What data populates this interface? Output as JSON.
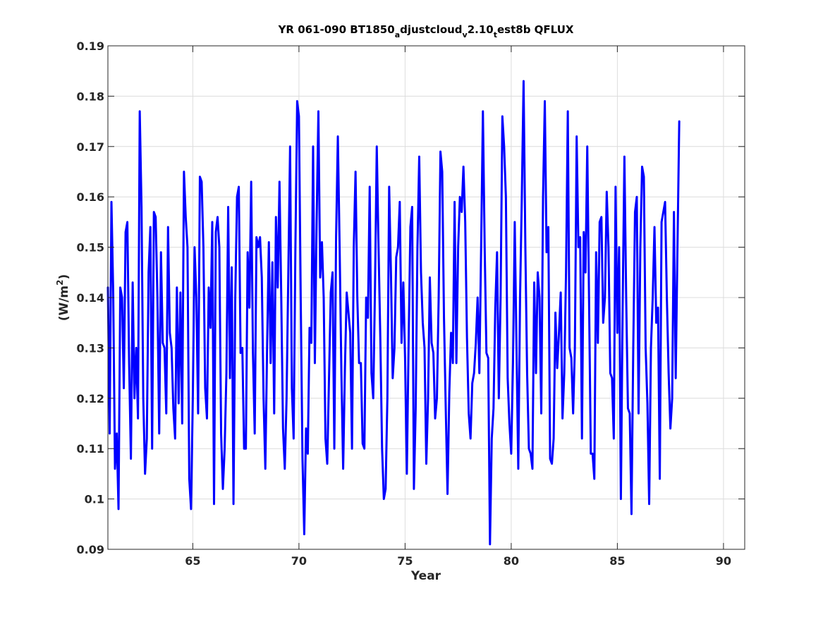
{
  "chart_data": {
    "type": "line",
    "title_parts": [
      {
        "text": "YR 061-090 BT1850",
        "sub": false
      },
      {
        "text": "a",
        "sub": true
      },
      {
        "text": "djustcloud",
        "sub": false
      },
      {
        "text": "v",
        "sub": true
      },
      {
        "text": "2.10",
        "sub": false
      },
      {
        "text": "t",
        "sub": true
      },
      {
        "text": "est8b QFLUX",
        "sub": false
      }
    ],
    "xlabel": "Year",
    "ylabel_main": "(W/m",
    "ylabel_sup": "2",
    "ylabel_end": ")",
    "xlim": [
      61,
      91
    ],
    "ylim": [
      0.09,
      0.19
    ],
    "xticks": [
      65,
      70,
      75,
      80,
      85,
      90
    ],
    "yticks": [
      0.09,
      0.1,
      0.11,
      0.12,
      0.13,
      0.14,
      0.15,
      0.16,
      0.17,
      0.18,
      0.19
    ],
    "ytick_labels": [
      "0.09",
      "0.1",
      "0.11",
      "0.12",
      "0.13",
      "0.14",
      "0.15",
      "0.16",
      "0.17",
      "0.18",
      "0.19"
    ],
    "grid": true,
    "series": [
      {
        "color": "#0000ff",
        "x_start": 61.0,
        "x_step": 0.08333,
        "values": [
          0.142,
          0.113,
          0.159,
          0.141,
          0.106,
          0.113,
          0.098,
          0.142,
          0.14,
          0.122,
          0.153,
          0.155,
          0.127,
          0.108,
          0.143,
          0.12,
          0.13,
          0.116,
          0.177,
          0.158,
          0.12,
          0.105,
          0.112,
          0.145,
          0.154,
          0.11,
          0.157,
          0.156,
          0.14,
          0.113,
          0.149,
          0.131,
          0.13,
          0.117,
          0.154,
          0.133,
          0.13,
          0.118,
          0.112,
          0.142,
          0.119,
          0.141,
          0.115,
          0.165,
          0.156,
          0.15,
          0.104,
          0.098,
          0.12,
          0.15,
          0.14,
          0.117,
          0.164,
          0.163,
          0.15,
          0.122,
          0.116,
          0.142,
          0.134,
          0.155,
          0.099,
          0.153,
          0.156,
          0.15,
          0.113,
          0.102,
          0.11,
          0.125,
          0.158,
          0.124,
          0.146,
          0.099,
          0.14,
          0.16,
          0.162,
          0.129,
          0.13,
          0.11,
          0.11,
          0.149,
          0.138,
          0.163,
          0.129,
          0.113,
          0.152,
          0.15,
          0.152,
          0.144,
          0.12,
          0.106,
          0.13,
          0.151,
          0.127,
          0.147,
          0.117,
          0.156,
          0.142,
          0.163,
          0.14,
          0.114,
          0.106,
          0.12,
          0.145,
          0.17,
          0.122,
          0.112,
          0.15,
          0.179,
          0.176,
          0.14,
          0.108,
          0.093,
          0.114,
          0.109,
          0.134,
          0.131,
          0.17,
          0.127,
          0.155,
          0.177,
          0.144,
          0.151,
          0.14,
          0.112,
          0.107,
          0.124,
          0.141,
          0.145,
          0.11,
          0.152,
          0.172,
          0.15,
          0.125,
          0.106,
          0.126,
          0.141,
          0.137,
          0.133,
          0.11,
          0.15,
          0.165,
          0.14,
          0.127,
          0.127,
          0.111,
          0.11,
          0.14,
          0.136,
          0.162,
          0.125,
          0.12,
          0.142,
          0.17,
          0.15,
          0.132,
          0.11,
          0.1,
          0.102,
          0.12,
          0.162,
          0.145,
          0.124,
          0.13,
          0.148,
          0.15,
          0.159,
          0.131,
          0.143,
          0.128,
          0.105,
          0.131,
          0.154,
          0.158,
          0.102,
          0.118,
          0.15,
          0.168,
          0.145,
          0.135,
          0.13,
          0.107,
          0.12,
          0.144,
          0.131,
          0.129,
          0.116,
          0.12,
          0.14,
          0.169,
          0.165,
          0.136,
          0.118,
          0.101,
          0.121,
          0.133,
          0.127,
          0.159,
          0.127,
          0.15,
          0.16,
          0.157,
          0.166,
          0.155,
          0.132,
          0.117,
          0.112,
          0.123,
          0.125,
          0.131,
          0.14,
          0.125,
          0.15,
          0.177,
          0.15,
          0.129,
          0.128,
          0.091,
          0.112,
          0.118,
          0.138,
          0.149,
          0.12,
          0.14,
          0.176,
          0.17,
          0.16,
          0.124,
          0.115,
          0.109,
          0.127,
          0.155,
          0.13,
          0.106,
          0.14,
          0.16,
          0.183,
          0.15,
          0.125,
          0.11,
          0.109,
          0.106,
          0.143,
          0.125,
          0.145,
          0.14,
          0.117,
          0.16,
          0.179,
          0.149,
          0.154,
          0.108,
          0.107,
          0.112,
          0.137,
          0.126,
          0.133,
          0.141,
          0.116,
          0.125,
          0.145,
          0.177,
          0.13,
          0.128,
          0.117,
          0.13,
          0.172,
          0.15,
          0.152,
          0.112,
          0.153,
          0.145,
          0.17,
          0.14,
          0.109,
          0.109,
          0.104,
          0.149,
          0.131,
          0.155,
          0.156,
          0.135,
          0.14,
          0.161,
          0.15,
          0.125,
          0.124,
          0.112,
          0.162,
          0.133,
          0.15,
          0.1,
          0.138,
          0.168,
          0.14,
          0.118,
          0.117,
          0.097,
          0.13,
          0.157,
          0.16,
          0.117,
          0.15,
          0.166,
          0.164,
          0.13,
          0.119,
          0.099,
          0.13,
          0.14,
          0.154,
          0.135,
          0.138,
          0.104,
          0.155,
          0.157,
          0.159,
          0.14,
          0.125,
          0.114,
          0.12,
          0.157,
          0.124,
          0.15,
          0.175
        ]
      }
    ]
  }
}
